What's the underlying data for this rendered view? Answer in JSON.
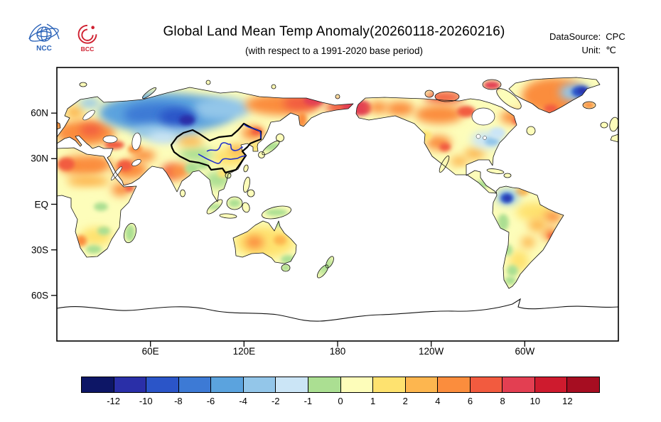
{
  "header": {
    "title": "Global Land Mean Temp Anomaly(20260118-20260216)",
    "subtitle": "(with respect to a 1991-2020 base period)",
    "datasource_label": "DataSource:",
    "datasource_value": "CPC",
    "unit_label": "Unit:",
    "unit_value": "℃",
    "ncc_logo_text": "NCC",
    "bcc_logo_text": "BCC"
  },
  "map": {
    "lat_tick_labels": [
      "60N",
      "30N",
      "EQ",
      "30S",
      "60S"
    ],
    "lon_tick_labels": [
      "60E",
      "120E",
      "180",
      "120W",
      "60W"
    ]
  },
  "colorbar": {
    "tick_labels": [
      "-12",
      "-10",
      "-8",
      "-6",
      "-4",
      "-2",
      "-1",
      "0",
      "1",
      "2",
      "4",
      "6",
      "8",
      "10",
      "12"
    ],
    "colors": [
      "#0d1666",
      "#2a2fa8",
      "#2b55c8",
      "#3d7ad5",
      "#5ba3de",
      "#93c6e9",
      "#cbe5f6",
      "#abdf92",
      "#fdfdba",
      "#fee26f",
      "#fdb64f",
      "#fb8d3d",
      "#f25b3f",
      "#e33f52",
      "#ce1b2e",
      "#a60d21"
    ]
  }
}
